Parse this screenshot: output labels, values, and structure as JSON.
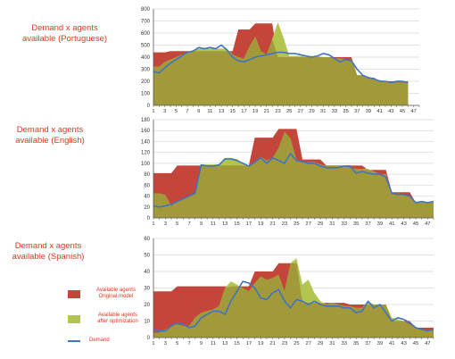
{
  "colors": {
    "original": "#c4453a",
    "optimized": "#b2c54e",
    "overlap": "#a29a3a",
    "demand": "#3f74c1",
    "title": "#e8331d",
    "grid": "#d8d8d8",
    "axis": "#555555"
  },
  "titles": [
    "Demand x agents\navailable (Portuguese)",
    "Demand x agents\navailable (English)",
    "Demand x agents\navailable (Spanish)"
  ],
  "legend": {
    "original": "Available agents\nOriginal model",
    "optimized": "Available agents\nafter optimization",
    "demand": "Demand"
  },
  "x_tick_labels": [
    "1",
    "3",
    "5",
    "7",
    "9",
    "11",
    "13",
    "15",
    "17",
    "19",
    "21",
    "23",
    "25",
    "27",
    "29",
    "31",
    "33",
    "35",
    "37",
    "39",
    "41",
    "43",
    "45",
    "47"
  ],
  "chart_data": [
    {
      "type": "area",
      "title": "Demand x agents available (Portuguese)",
      "x": [
        1,
        2,
        3,
        4,
        5,
        6,
        7,
        8,
        9,
        10,
        11,
        12,
        13,
        14,
        15,
        16,
        17,
        18,
        19,
        20,
        21,
        22,
        23,
        24,
        25,
        26,
        27,
        28,
        29,
        30,
        31,
        32,
        33,
        34,
        35,
        36,
        37,
        38,
        39,
        40,
        41,
        42,
        43,
        44,
        45,
        46
      ],
      "ylim": [
        0,
        800
      ],
      "yticks": [
        0,
        100,
        200,
        300,
        400,
        500,
        600,
        700,
        800
      ],
      "grid": true,
      "series": [
        {
          "name": "Available agents Original model",
          "values": [
            440,
            440,
            440,
            450,
            450,
            450,
            450,
            450,
            450,
            450,
            450,
            450,
            450,
            450,
            450,
            630,
            630,
            630,
            680,
            680,
            680,
            680,
            400,
            400,
            400,
            400,
            400,
            400,
            400,
            400,
            400,
            400,
            400,
            400,
            400,
            400,
            250,
            250,
            230,
            230,
            200,
            200,
            200,
            200,
            200,
            200
          ]
        },
        {
          "name": "Available agents after optimization",
          "values": [
            320,
            320,
            360,
            380,
            400,
            420,
            440,
            460,
            470,
            470,
            470,
            470,
            470,
            470,
            420,
            400,
            390,
            490,
            570,
            450,
            420,
            550,
            690,
            560,
            410,
            410,
            410,
            410,
            410,
            410,
            400,
            400,
            390,
            390,
            380,
            380,
            250,
            250,
            220,
            220,
            210,
            200,
            190,
            190,
            190,
            190
          ]
        },
        {
          "name": "Demand",
          "values": [
            280,
            270,
            310,
            350,
            380,
            410,
            440,
            450,
            480,
            470,
            480,
            470,
            500,
            460,
            400,
            370,
            360,
            380,
            400,
            410,
            420,
            430,
            440,
            440,
            430,
            430,
            420,
            410,
            400,
            410,
            430,
            420,
            390,
            360,
            380,
            370,
            300,
            250,
            230,
            220,
            200,
            200,
            190,
            200,
            200,
            190
          ]
        }
      ]
    },
    {
      "type": "area",
      "title": "Demand x agents available (English)",
      "x": [
        1,
        2,
        3,
        4,
        5,
        6,
        7,
        8,
        9,
        10,
        11,
        12,
        13,
        14,
        15,
        16,
        17,
        18,
        19,
        20,
        21,
        22,
        23,
        24,
        25,
        26,
        27,
        28,
        29,
        30,
        31,
        32,
        33,
        34,
        35,
        36,
        37,
        38,
        39,
        40,
        41,
        42,
        43,
        44,
        45,
        46,
        47,
        48
      ],
      "ylim": [
        0,
        180
      ],
      "yticks": [
        0,
        20,
        40,
        60,
        80,
        100,
        120,
        140,
        160,
        180
      ],
      "grid": true,
      "series": [
        {
          "name": "Available agents Original model",
          "values": [
            82,
            82,
            82,
            82,
            96,
            96,
            96,
            96,
            96,
            96,
            96,
            96,
            96,
            96,
            96,
            96,
            96,
            147,
            147,
            147,
            147,
            163,
            163,
            163,
            163,
            107,
            107,
            107,
            107,
            96,
            96,
            96,
            96,
            96,
            96,
            96,
            88,
            88,
            88,
            88,
            47,
            47,
            47,
            47,
            28,
            28,
            28,
            28
          ]
        },
        {
          "name": "Available agents after optimization",
          "values": [
            45,
            45,
            42,
            22,
            30,
            35,
            40,
            45,
            98,
            98,
            98,
            98,
            110,
            110,
            108,
            100,
            95,
            100,
            112,
            105,
            110,
            128,
            158,
            145,
            107,
            102,
            102,
            102,
            98,
            95,
            95,
            95,
            95,
            92,
            90,
            90,
            90,
            85,
            80,
            80,
            45,
            45,
            43,
            40,
            30,
            30,
            28,
            28
          ]
        },
        {
          "name": "Demand",
          "values": [
            22,
            20,
            22,
            25,
            30,
            35,
            40,
            45,
            97,
            95,
            95,
            97,
            108,
            108,
            105,
            100,
            95,
            102,
            110,
            100,
            110,
            105,
            100,
            118,
            105,
            103,
            100,
            100,
            95,
            92,
            92,
            92,
            95,
            95,
            82,
            85,
            82,
            80,
            80,
            75,
            45,
            43,
            43,
            40,
            28,
            30,
            28,
            30
          ]
        }
      ]
    },
    {
      "type": "area",
      "title": "Demand x agents available (Spanish)",
      "x": [
        1,
        2,
        3,
        4,
        5,
        6,
        7,
        8,
        9,
        10,
        11,
        12,
        13,
        14,
        15,
        16,
        17,
        18,
        19,
        20,
        21,
        22,
        23,
        24,
        25,
        26,
        27,
        28,
        29,
        30,
        31,
        32,
        33,
        34,
        35,
        36,
        37,
        38,
        39,
        40,
        41,
        42,
        43,
        44,
        45,
        46,
        47,
        48
      ],
      "ylim": [
        0,
        60
      ],
      "yticks": [
        0,
        10,
        20,
        30,
        40,
        50,
        60
      ],
      "grid": true,
      "series": [
        {
          "name": "Available agents Original model",
          "values": [
            28,
            28,
            28,
            28,
            31,
            31,
            31,
            31,
            31,
            31,
            31,
            31,
            31,
            31,
            31,
            31,
            31,
            40,
            40,
            40,
            40,
            45,
            45,
            45,
            45,
            21,
            21,
            21,
            21,
            21,
            21,
            21,
            21,
            20,
            20,
            20,
            20,
            20,
            20,
            20,
            10,
            10,
            10,
            10,
            6,
            6,
            6,
            6
          ]
        },
        {
          "name": "Available agents after optimization",
          "values": [
            3,
            3,
            5,
            7,
            8,
            7,
            7,
            12,
            15,
            16,
            17,
            19,
            30,
            34,
            32,
            30,
            28,
            33,
            37,
            35,
            36,
            38,
            28,
            45,
            48,
            32,
            35,
            27,
            22,
            20,
            21,
            20,
            19,
            19,
            18,
            18,
            22,
            20,
            20,
            20,
            12,
            11,
            10,
            8,
            6,
            5,
            4,
            4
          ]
        },
        {
          "name": "Demand",
          "values": [
            5,
            4,
            4,
            7,
            9,
            8,
            6,
            7,
            12,
            14,
            16,
            16,
            14,
            22,
            28,
            34,
            33,
            30,
            24,
            23,
            27,
            29,
            22,
            18,
            23,
            22,
            20,
            22,
            20,
            19,
            19,
            19,
            18,
            18,
            15,
            16,
            22,
            18,
            20,
            15,
            10,
            12,
            11,
            9,
            6,
            5,
            4,
            5
          ]
        }
      ]
    }
  ]
}
